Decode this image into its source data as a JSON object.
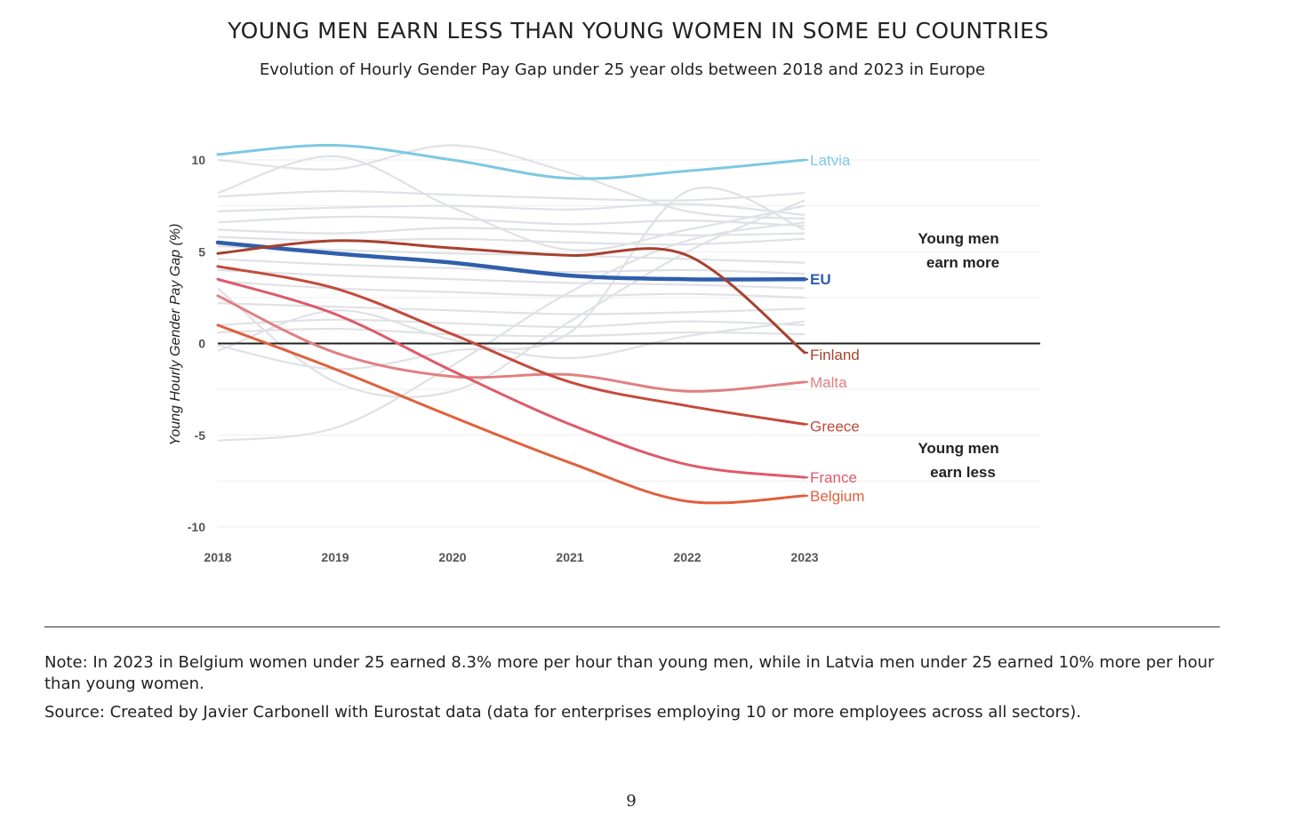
{
  "title": "YOUNG MEN EARN LESS THAN YOUNG WOMEN IN SOME EU COUNTRIES",
  "subtitle": "Evolution of Hourly Gender Pay Gap under 25 year olds between 2018 and 2023 in Europe",
  "note": "Note: In 2023 in Belgium women under 25 earned 8.3% more per hour than young men, while in Latvia men under 25 earned 10% more per hour than young women.",
  "source": "Source: Created by Javier Carbonell with Eurostat data (data for enterprises employing 10 or more employees across all sectors).",
  "page_number": "9",
  "chart_data": {
    "type": "line",
    "ylabel": "Young Hourly Gender Pay Gap (%)",
    "xlabel": "",
    "x": [
      2018,
      2019,
      2020,
      2021,
      2022,
      2023
    ],
    "x_tick_labels": [
      "2018",
      "2019",
      "2020",
      "2021",
      "2022",
      "2023"
    ],
    "ylim": [
      -10,
      10
    ],
    "y_ticks": [
      10,
      5,
      0,
      -5,
      -10
    ],
    "y_tick_labels": [
      "10",
      "5",
      "0",
      "-5",
      "-10"
    ],
    "grid": true,
    "zero_line": true,
    "highlighted_series": [
      {
        "name": "Latvia",
        "color": "#7ec8e3",
        "width": 3,
        "values": [
          10.3,
          10.8,
          10.0,
          9.0,
          9.4,
          10.0
        ]
      },
      {
        "name": "EU",
        "color": "#2f5eab",
        "width": 4.5,
        "bold": true,
        "values": [
          5.5,
          4.9,
          4.4,
          3.7,
          3.5,
          3.5
        ]
      },
      {
        "name": "Finland",
        "color": "#a7412e",
        "width": 3,
        "values": [
          4.9,
          5.6,
          5.2,
          4.8,
          4.8,
          -0.5
        ]
      },
      {
        "name": "Malta",
        "color": "#e08080",
        "width": 3,
        "values": [
          2.6,
          -0.5,
          -1.8,
          -1.7,
          -2.6,
          -2.1
        ]
      },
      {
        "name": "Greece",
        "color": "#c44a3c",
        "width": 3,
        "values": [
          4.2,
          3.0,
          0.5,
          -2.1,
          -3.4,
          -4.4
        ]
      },
      {
        "name": "France",
        "color": "#de5a6a",
        "width": 3,
        "values": [
          3.5,
          1.6,
          -1.5,
          -4.4,
          -6.6,
          -7.3
        ]
      },
      {
        "name": "Belgium",
        "color": "#e0603c",
        "width": 3,
        "values": [
          1.0,
          -1.4,
          -4.0,
          -6.5,
          -8.6,
          -8.3
        ]
      }
    ],
    "background_series_color": "#dfe1e6",
    "background_series": [
      [
        8.0,
        8.3,
        8.1,
        7.9,
        7.8,
        8.2
      ],
      [
        7.2,
        7.4,
        7.5,
        7.3,
        7.6,
        7.0
      ],
      [
        6.6,
        6.9,
        6.8,
        6.5,
        6.7,
        6.4
      ],
      [
        6.2,
        6.0,
        6.3,
        6.1,
        5.9,
        6.0
      ],
      [
        5.8,
        5.6,
        5.7,
        5.5,
        5.4,
        5.7
      ],
      [
        5.3,
        5.1,
        4.9,
        4.8,
        4.6,
        4.4
      ],
      [
        4.6,
        4.3,
        4.1,
        3.9,
        4.0,
        3.8
      ],
      [
        4.0,
        3.7,
        3.5,
        3.3,
        3.2,
        3.0
      ],
      [
        3.4,
        3.0,
        2.8,
        2.6,
        2.7,
        2.5
      ],
      [
        2.2,
        2.0,
        1.8,
        1.6,
        1.7,
        1.9
      ],
      [
        1.0,
        1.3,
        1.1,
        0.9,
        1.2,
        1.0
      ],
      [
        0.6,
        0.8,
        0.5,
        0.4,
        0.6,
        0.5
      ],
      [
        -0.4,
        1.8,
        0.2,
        -0.8,
        0.4,
        1.2
      ],
      [
        -5.3,
        -4.6,
        -1.2,
        2.8,
        5.6,
        6.6
      ],
      [
        8.2,
        10.2,
        7.4,
        5.1,
        6.2,
        7.5
      ],
      [
        10.0,
        9.5,
        10.8,
        9.3,
        7.2,
        6.8
      ],
      [
        3.0,
        -2.1,
        -2.6,
        1.2,
        5.0,
        7.8
      ],
      [
        -0.1,
        -1.4,
        -0.4,
        0.6,
        8.3,
        6.2
      ]
    ],
    "annotations": [
      {
        "text_lines": [
          "Young men",
          "earn more"
        ]
      },
      {
        "text_lines": [
          "Young men",
          "earn less"
        ]
      }
    ]
  }
}
